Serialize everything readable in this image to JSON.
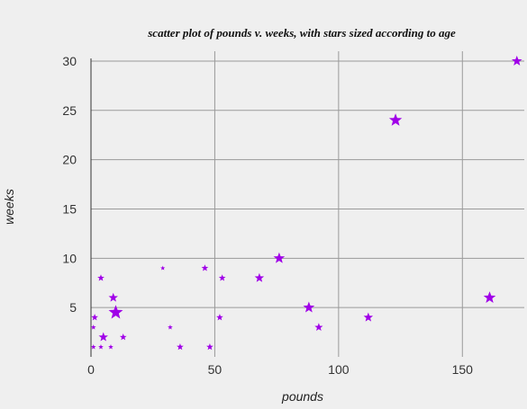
{
  "chart_data": {
    "type": "scatter",
    "title": "scatter plot of pounds v. weeks, with stars sized according to age",
    "xlabel": "pounds",
    "ylabel": "weeks",
    "xlim": [
      0,
      175
    ],
    "ylim": [
      0,
      31
    ],
    "xticks": [
      0,
      50,
      100,
      150
    ],
    "yticks": [
      5,
      10,
      15,
      20,
      25,
      30
    ],
    "x_tick_labels": [
      "0",
      "50",
      "100",
      "150"
    ],
    "y_tick_labels": [
      "5",
      "10",
      "15",
      "20",
      "25",
      "30"
    ],
    "grid": true,
    "marker": "star",
    "marker_color": "#a000e8",
    "points": [
      {
        "pounds": 10,
        "weeks": 4.5,
        "age": 10
      },
      {
        "pounds": 9,
        "weeks": 6,
        "age": 4
      },
      {
        "pounds": 5,
        "weeks": 2,
        "age": 4
      },
      {
        "pounds": 4,
        "weeks": 8,
        "age": 2
      },
      {
        "pounds": 1.5,
        "weeks": 4,
        "age": 2
      },
      {
        "pounds": 1,
        "weeks": 3,
        "age": 1
      },
      {
        "pounds": 1,
        "weeks": 1,
        "age": 1
      },
      {
        "pounds": 4,
        "weeks": 1,
        "age": 1
      },
      {
        "pounds": 8,
        "weeks": 1,
        "age": 1
      },
      {
        "pounds": 13,
        "weeks": 2,
        "age": 2
      },
      {
        "pounds": 29,
        "weeks": 9,
        "age": 0.8
      },
      {
        "pounds": 32,
        "weeks": 3,
        "age": 1
      },
      {
        "pounds": 36,
        "weeks": 1,
        "age": 2
      },
      {
        "pounds": 46,
        "weeks": 9,
        "age": 2
      },
      {
        "pounds": 48,
        "weeks": 1,
        "age": 2
      },
      {
        "pounds": 52,
        "weeks": 4,
        "age": 2
      },
      {
        "pounds": 53,
        "weeks": 8,
        "age": 2
      },
      {
        "pounds": 68,
        "weeks": 8,
        "age": 4
      },
      {
        "pounds": 76,
        "weeks": 10,
        "age": 6
      },
      {
        "pounds": 88,
        "weeks": 5,
        "age": 6
      },
      {
        "pounds": 92,
        "weeks": 3,
        "age": 3
      },
      {
        "pounds": 112,
        "weeks": 4,
        "age": 4
      },
      {
        "pounds": 123,
        "weeks": 24,
        "age": 8
      },
      {
        "pounds": 161,
        "weeks": 6,
        "age": 7
      },
      {
        "pounds": 172,
        "weeks": 30,
        "age": 5
      }
    ]
  }
}
